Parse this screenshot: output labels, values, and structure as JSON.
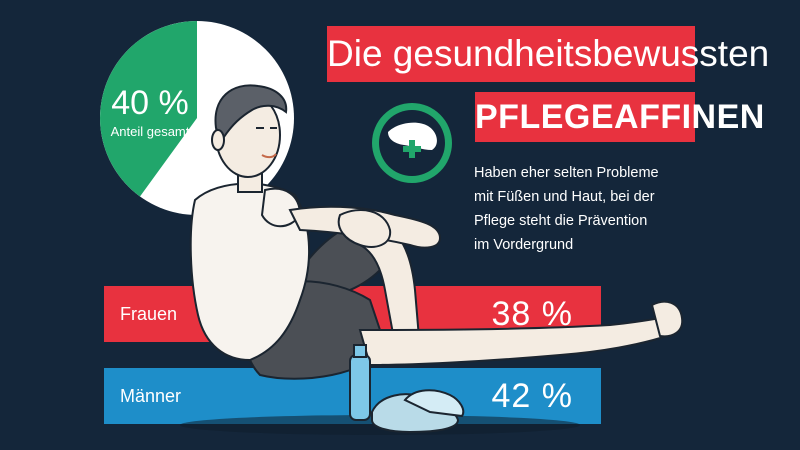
{
  "title": {
    "line1": "Die gesundheitsbewussten",
    "line2": "PFLEGEAFFINEN"
  },
  "pie": {
    "value_label": "40 %",
    "caption": "Anteil gesamt",
    "fraction": 0.4,
    "colors": {
      "share": "#21a66b",
      "rest": "#ffffff"
    }
  },
  "icon": {
    "name": "foot-cross-icon"
  },
  "description": {
    "lines": [
      "Haben eher selten Probleme",
      "mit Füßen und Haut, bei der",
      "Pflege steht die Prävention",
      "im Vordergrund"
    ]
  },
  "bars": [
    {
      "label": "Frauen",
      "value_label": "38 %",
      "color": "#e8323f"
    },
    {
      "label": "Männer",
      "value_label": "42 %",
      "color": "#1e8ec9"
    }
  ],
  "colors": {
    "background": "#14263a",
    "accent_red": "#e8323f",
    "accent_blue": "#1e8ec9",
    "accent_green": "#21a66b"
  }
}
